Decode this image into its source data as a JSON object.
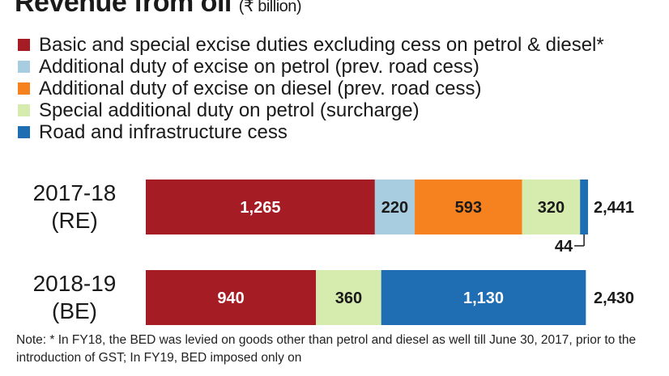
{
  "title": "Revenue from oil",
  "title_unit": "(₹ billion)",
  "legend": [
    {
      "label": "Basic and special excise duties excluding cess on petrol & diesel*",
      "color": "#a51c24"
    },
    {
      "label": "Additional duty of excise on petrol (prev. road cess)",
      "color": "#a9cde0"
    },
    {
      "label": "Additional duty of excise on diesel (prev. road cess)",
      "color": "#f5821f"
    },
    {
      "label": "Special additional duty on petrol (surcharge)",
      "color": "#d6ecae"
    },
    {
      "label": "Road and infrastructure cess",
      "color": "#1f6db3"
    }
  ],
  "chart_data": {
    "type": "bar",
    "orientation": "horizontal",
    "stacked": true,
    "categories": [
      [
        "2017-18",
        "(RE)"
      ],
      [
        "2018-19",
        "(BE)"
      ]
    ],
    "series": [
      {
        "name": "Basic and special excise duties excluding cess on petrol & diesel*",
        "color": "#a51c24",
        "text_color": "#ffffff",
        "values": [
          1265,
          940
        ],
        "labels": [
          "1,265",
          "940"
        ]
      },
      {
        "name": "Additional duty of excise on petrol (prev. road cess)",
        "color": "#a9cde0",
        "text_color": "#1a1a1a",
        "values": [
          220,
          0
        ],
        "labels": [
          "220",
          ""
        ]
      },
      {
        "name": "Additional duty of excise on diesel (prev. road cess)",
        "color": "#f5821f",
        "text_color": "#1a1a1a",
        "values": [
          593,
          0
        ],
        "labels": [
          "593",
          ""
        ]
      },
      {
        "name": "Special additional duty on petrol (surcharge)",
        "color": "#d6ecae",
        "text_color": "#1a1a1a",
        "values": [
          320,
          360
        ],
        "labels": [
          "320",
          "360"
        ]
      },
      {
        "name": "Road and infrastructure cess",
        "color": "#1f6db3",
        "text_color": "#ffffff",
        "values": [
          44,
          1130
        ],
        "labels": [
          "44",
          "1,130"
        ]
      }
    ],
    "totals": [
      "2,441",
      "2,430"
    ]
  },
  "note": "Note: * In FY18, the BED was levied on goods other than petrol and diesel as well till June 30, 2017, prior to the introduction of GST; In FY19, BED imposed only on"
}
